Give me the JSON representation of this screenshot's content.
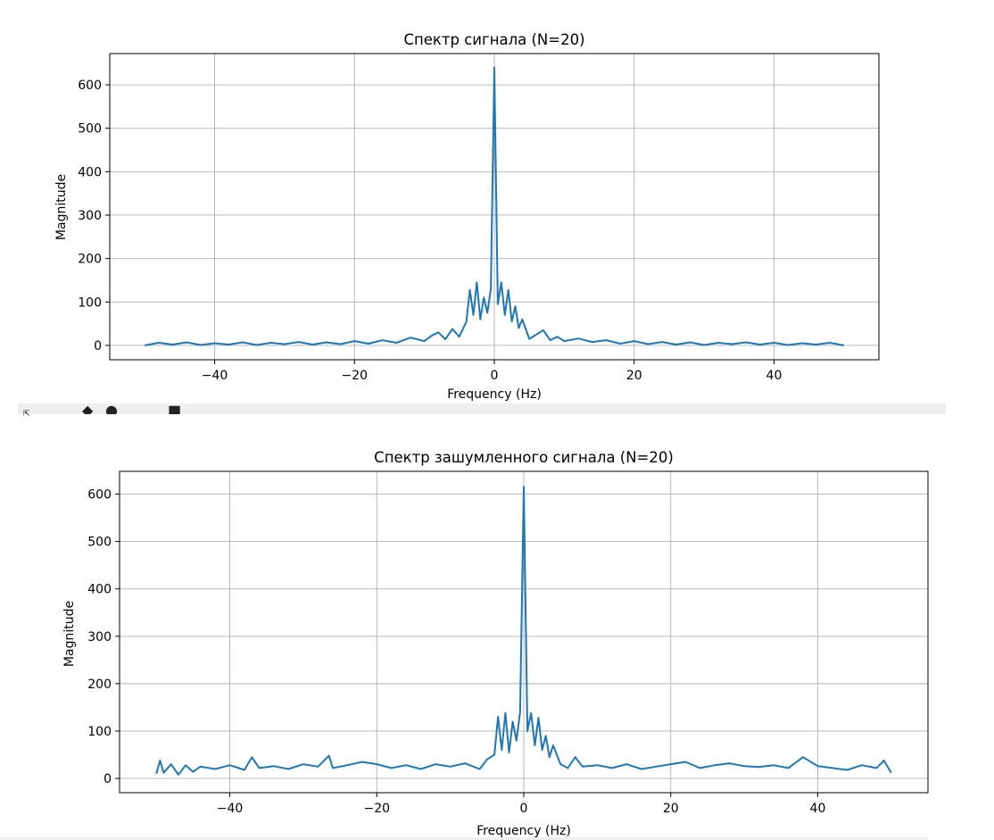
{
  "toolbar": {
    "icons": [
      "move-icon",
      "zoom-icon",
      "home-icon",
      "save-icon"
    ]
  },
  "chart_data": [
    {
      "type": "line",
      "title": "Спектр сигнала (N=20)",
      "xlabel": "Frequency (Hz)",
      "ylabel": "Magnitude",
      "xlim": [
        -55,
        55
      ],
      "ylim": [
        -33,
        672
      ],
      "xticks": [
        -40,
        -20,
        0,
        20,
        40
      ],
      "xtick_labels": [
        "−40",
        "−20",
        "0",
        "20",
        "40"
      ],
      "yticks": [
        0,
        100,
        200,
        300,
        400,
        500,
        600
      ],
      "ytick_labels": [
        "0",
        "100",
        "200",
        "300",
        "400",
        "500",
        "600"
      ],
      "grid": true,
      "color": "#1f77b4",
      "series": [
        {
          "x": [
            -50,
            -48,
            -46,
            -44,
            -42,
            -40,
            -38,
            -36,
            -34,
            -32,
            -30,
            -28,
            -26,
            -24,
            -22,
            -20,
            -18,
            -16,
            -14,
            -12,
            -10,
            -9,
            -8,
            -7,
            -6,
            -5,
            -4,
            -3.5,
            -3,
            -2.5,
            -2,
            -1.5,
            -1,
            -0.5,
            0,
            0.5,
            1,
            1.5,
            2,
            2.5,
            3,
            3.5,
            4,
            5,
            6,
            7,
            8,
            9,
            10,
            12,
            14,
            16,
            18,
            20,
            22,
            24,
            26,
            28,
            30,
            32,
            34,
            36,
            38,
            40,
            42,
            44,
            46,
            48,
            50
          ],
          "y": [
            0,
            6,
            2,
            7,
            1,
            5,
            2,
            7,
            1,
            6,
            3,
            8,
            2,
            7,
            3,
            10,
            4,
            12,
            6,
            18,
            10,
            22,
            30,
            14,
            38,
            20,
            55,
            128,
            70,
            145,
            60,
            110,
            75,
            130,
            640,
            95,
            145,
            70,
            128,
            55,
            90,
            40,
            60,
            15,
            25,
            35,
            12,
            20,
            10,
            16,
            8,
            12,
            4,
            10,
            3,
            8,
            2,
            7,
            1,
            6,
            3,
            7,
            2,
            6,
            1,
            5,
            2,
            6,
            0
          ]
        }
      ]
    },
    {
      "type": "line",
      "title": "Спектр зашумленного сигнала (N=20)",
      "xlabel": "Frequency (Hz)",
      "ylabel": "Magnitude",
      "xlim": [
        -55,
        55
      ],
      "ylim": [
        -30,
        648
      ],
      "xticks": [
        -40,
        -20,
        0,
        20,
        40
      ],
      "xtick_labels": [
        "−40",
        "−20",
        "0",
        "20",
        "40"
      ],
      "yticks": [
        0,
        100,
        200,
        300,
        400,
        500,
        600
      ],
      "ytick_labels": [
        "0",
        "100",
        "200",
        "300",
        "400",
        "500",
        "600"
      ],
      "grid": true,
      "color": "#1f77b4",
      "series": [
        {
          "x": [
            -50,
            -49.5,
            -49,
            -48,
            -47,
            -46,
            -45,
            -44,
            -42,
            -40,
            -38,
            -37,
            -36,
            -34,
            -32,
            -30,
            -28,
            -26.5,
            -26,
            -24,
            -22,
            -20,
            -18,
            -16,
            -14,
            -12,
            -10,
            -8,
            -6,
            -5,
            -4,
            -3.5,
            -3,
            -2.5,
            -2,
            -1.5,
            -1,
            -0.5,
            0,
            0.5,
            1,
            1.5,
            2,
            2.5,
            3,
            3.5,
            4,
            5,
            6,
            7,
            8,
            10,
            12,
            14,
            16,
            18,
            20,
            22,
            24,
            26,
            28,
            30,
            32,
            34,
            36,
            38,
            40,
            42,
            44,
            46,
            48,
            49,
            50
          ],
          "y": [
            10,
            38,
            12,
            30,
            8,
            28,
            14,
            25,
            20,
            28,
            18,
            45,
            22,
            26,
            20,
            30,
            25,
            48,
            22,
            28,
            35,
            30,
            22,
            28,
            20,
            30,
            25,
            32,
            20,
            40,
            50,
            130,
            60,
            138,
            55,
            120,
            80,
            140,
            615,
            100,
            138,
            70,
            128,
            60,
            90,
            45,
            70,
            30,
            22,
            45,
            25,
            28,
            22,
            30,
            20,
            25,
            30,
            35,
            22,
            28,
            32,
            26,
            24,
            28,
            22,
            45,
            26,
            22,
            18,
            28,
            22,
            38,
            12
          ]
        }
      ]
    }
  ]
}
